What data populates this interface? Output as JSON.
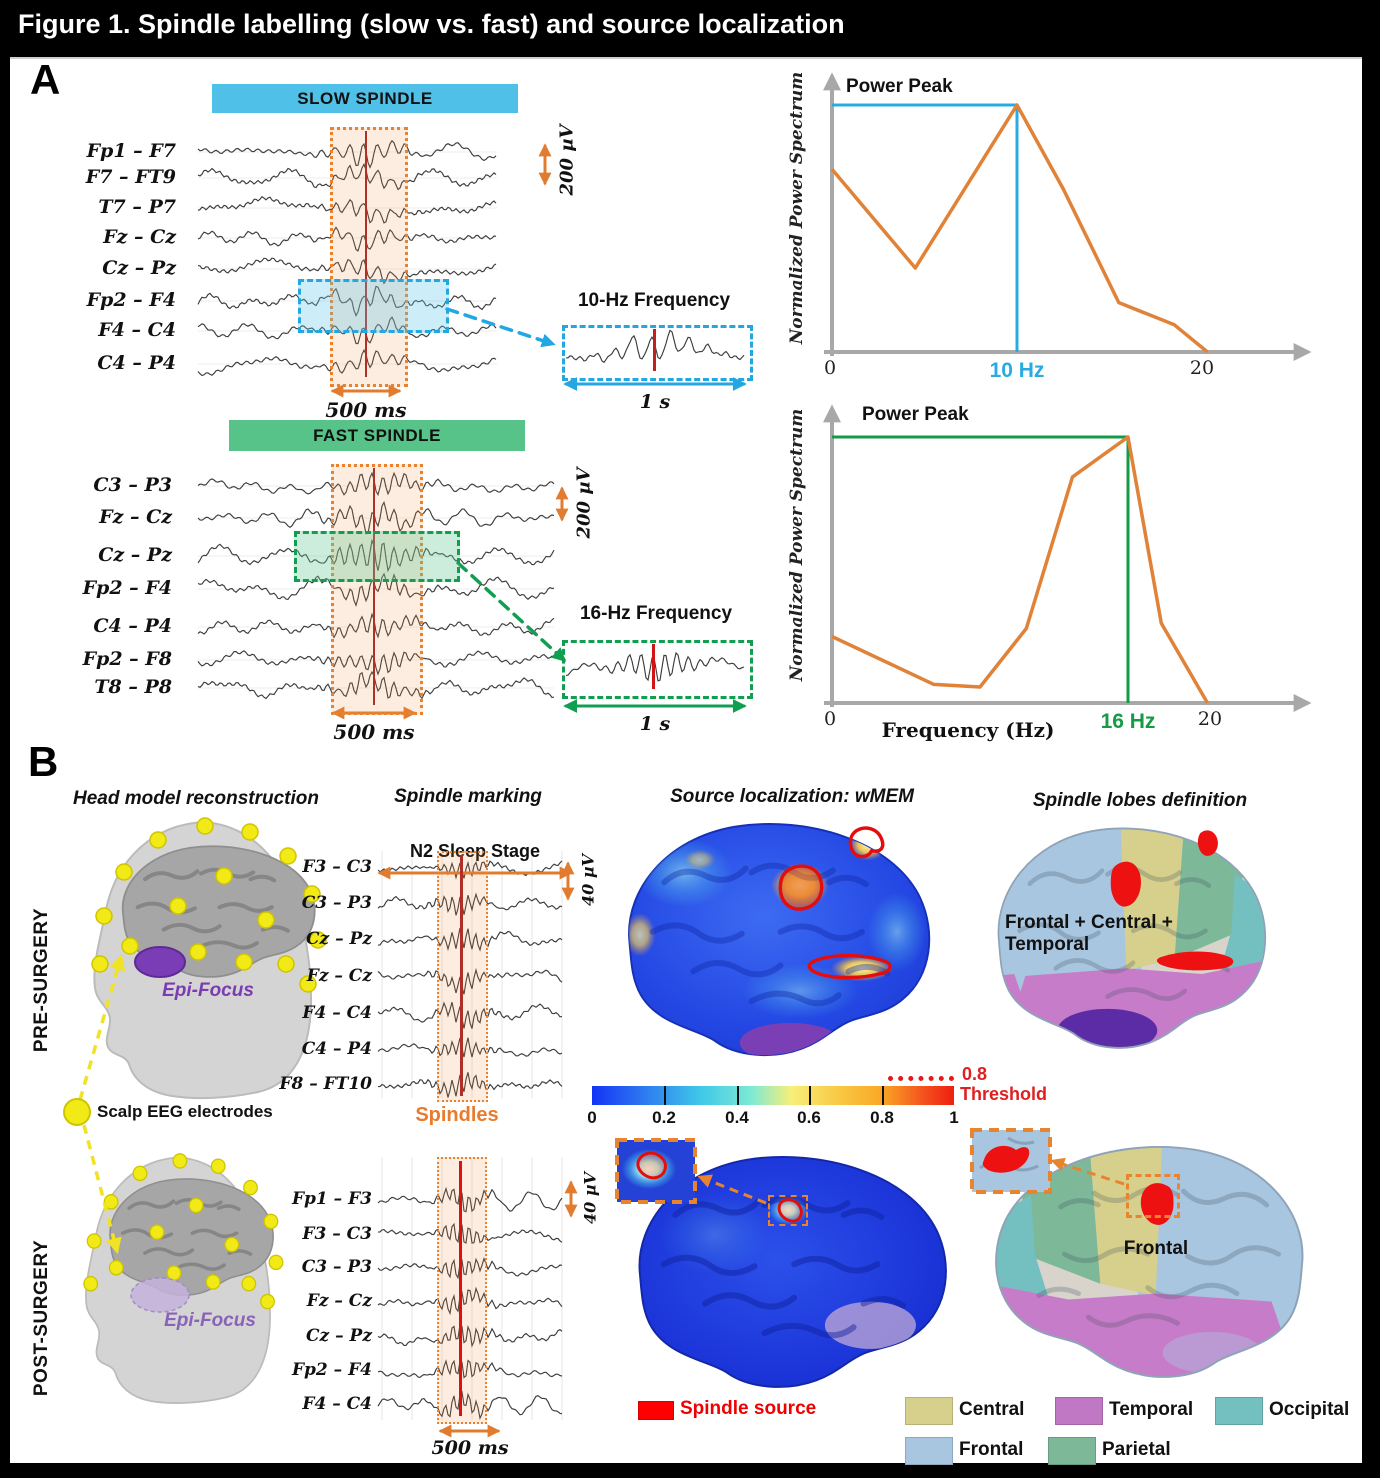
{
  "title": "Figure 1. Spindle labelling (slow vs. fast) and source localization",
  "panel_a": {
    "label": "A",
    "slow": {
      "header": "SLOW SPINDLE",
      "header_color": "#4FC0E8",
      "channels": [
        "Fp1 – F7",
        "F7 – FT9",
        "T7 – P7",
        "Fz – Cz",
        "Cz – Pz",
        "Fp2 – F4",
        "F4 – C4",
        "C4 – P4"
      ],
      "highlight_channel": "Fp2 – F4",
      "scale_label": "200 µV",
      "window_label": "500 ms",
      "inset_title": "10-Hz Frequency",
      "inset_duration": "1 s"
    },
    "fast": {
      "header": "FAST SPINDLE",
      "header_color": "#57C389",
      "channels": [
        "C3 – P3",
        "Fz – Cz",
        "Cz – Pz",
        "Fp2 – F4",
        "C4 – P4",
        "Fp2 – F8",
        "T8 – P8"
      ],
      "highlight_channel": "Cz – Pz",
      "scale_label": "200 µV",
      "window_label": "500 ms",
      "inset_title": "16-Hz Frequency",
      "inset_duration": "1 s"
    }
  },
  "chart_data": [
    {
      "type": "line",
      "title": "Power Peak",
      "ylabel": "Normalized Power Spectrum",
      "xlabel": "",
      "x": [
        0,
        4.5,
        10,
        12.5,
        15.5,
        18.5,
        20.3
      ],
      "y": [
        0.74,
        0.34,
        1.0,
        0.66,
        0.2,
        0.11,
        0
      ],
      "peak_hz": 10,
      "peak_label": "10 Hz",
      "xticks": [
        0,
        20
      ],
      "xtick_labels": [
        "0",
        "20"
      ],
      "xlim": [
        0,
        26
      ],
      "ylim": [
        0,
        1.05
      ],
      "line_color": "#E08238",
      "accent_color": "#29ABE2",
      "grid": false,
      "legend_position": "none"
    },
    {
      "type": "line",
      "title": "Power Peak",
      "ylabel": "Normalized Power Spectrum",
      "xlabel": "Frequency (Hz)",
      "x": [
        0,
        5.5,
        8,
        10.5,
        13,
        16,
        17.8,
        20.3
      ],
      "y": [
        0.25,
        0.07,
        0.06,
        0.28,
        0.85,
        1.0,
        0.3,
        0
      ],
      "peak_hz": 16,
      "peak_label": "16 Hz",
      "xticks": [
        0,
        20
      ],
      "xtick_labels": [
        "0",
        "20"
      ],
      "xlim": [
        0,
        26
      ],
      "ylim": [
        0,
        1.05
      ],
      "line_color": "#E08238",
      "accent_color": "#169A46",
      "grid": false,
      "legend_position": "none"
    }
  ],
  "panel_b": {
    "label": "B",
    "column_headers": [
      "Head model reconstruction",
      "Spindle marking",
      "Source localization: wMEM",
      "Spindle lobes definition"
    ],
    "row_labels": [
      "PRE-SURGERY",
      "POST-SURGERY"
    ],
    "scalp_label": "Scalp EEG electrodes",
    "epi_focus_pre": "Epi-Focus",
    "epi_focus_post": "Epi-Focus",
    "pre": {
      "stage_label": "N2 Sleep Stage",
      "channels": [
        "F3 – C3",
        "C3 – P3",
        "Cz – Pz",
        "Fz – Cz",
        "F4 – C4",
        "C4 – P4",
        "F8 – FT10"
      ],
      "scale_label": "40 µV",
      "spindles_label": "Spindles",
      "lobes_caption": "Frontal + Central + Temporal"
    },
    "post": {
      "channels": [
        "Fp1 – F3",
        "F3 – C3",
        "C3 – P3",
        "Fz – Cz",
        "Cz – Pz",
        "Fp2 – F4",
        "F4 – C4"
      ],
      "scale_label": "40 µV",
      "window_label": "500 ms",
      "lobes_caption": "Frontal"
    },
    "colorbar": {
      "ticks": [
        "0",
        "0.2",
        "0.4",
        "0.6",
        "0.8",
        "1"
      ],
      "threshold_value": "0.8",
      "threshold_label": "Threshold",
      "colors": [
        "#1433F5 0%",
        "#2E7DF0 15%",
        "#3FC8E8 30%",
        "#7EE9D4 44%",
        "#F7EF7A 55%",
        "#F9C945 68%",
        "#F9A825 80%",
        "#F5551F 91%",
        "#F01E0F 100%"
      ]
    },
    "source_legend": {
      "label": "Spindle source",
      "color": "#FF0000"
    },
    "lobe_legend": [
      {
        "label": "Central",
        "color": "#D6D08C"
      },
      {
        "label": "Temporal",
        "color": "#C077C4"
      },
      {
        "label": "Occipital",
        "color": "#74C0C1"
      },
      {
        "label": "Frontal",
        "color": "#A9C6E0"
      },
      {
        "label": "Parietal",
        "color": "#7DB899"
      }
    ]
  }
}
